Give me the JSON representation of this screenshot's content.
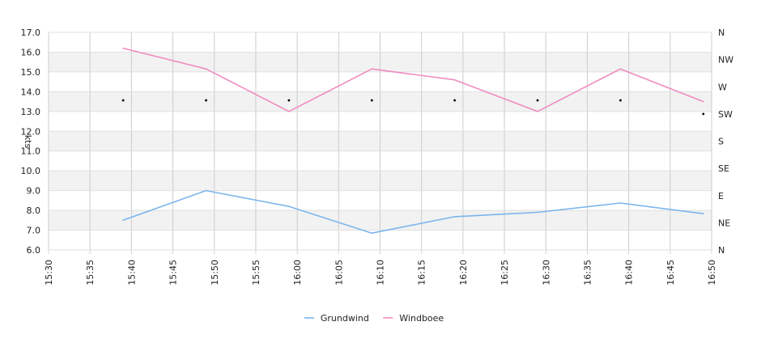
{
  "chart_data": {
    "type": "line",
    "ylabel": "kts",
    "ylim": [
      6,
      17
    ],
    "xlim": [
      "15:30",
      "16:50"
    ],
    "y_ticks": [
      "6.0",
      "7.0",
      "8.0",
      "9.0",
      "10.0",
      "11.0",
      "12.0",
      "13.0",
      "14.0",
      "15.0",
      "16.0",
      "17.0"
    ],
    "x_ticks": [
      "15:30",
      "15:35",
      "15:40",
      "15:45",
      "15:50",
      "15:55",
      "16:00",
      "16:05",
      "16:10",
      "16:15",
      "16:20",
      "16:25",
      "16:30",
      "16:35",
      "16:40",
      "16:45",
      "16:50"
    ],
    "right_axis": {
      "labels": [
        "N",
        "NE",
        "E",
        "SE",
        "S",
        "SW",
        "W",
        "NW",
        "N"
      ]
    },
    "grid": true,
    "legend_position": "bottom",
    "series": [
      {
        "name": "Grundwind",
        "color": "#7cb5ec",
        "x": [
          "15:39",
          "15:49",
          "15:59",
          "16:09",
          "16:19",
          "16:29",
          "16:39",
          "16:49"
        ],
        "values": [
          7.5,
          9.0,
          8.2,
          6.85,
          7.68,
          7.9,
          8.37,
          7.83
        ]
      },
      {
        "name": "Windboee",
        "color": "#f08cc0",
        "x": [
          "15:39",
          "15:49",
          "15:59",
          "16:09",
          "16:19",
          "16:29",
          "16:39",
          "16:49"
        ],
        "values": [
          16.2,
          15.15,
          13.0,
          15.15,
          14.6,
          13.0,
          15.15,
          13.5
        ]
      },
      {
        "name": "",
        "kind": "direction_markers",
        "color": "#000000",
        "x": [
          "15:39",
          "15:49",
          "15:59",
          "16:09",
          "16:19",
          "16:29",
          "16:39",
          "16:49"
        ],
        "direction_index": [
          5.5,
          5.5,
          5.5,
          5.5,
          5.5,
          5.5,
          5.5,
          5.0
        ]
      }
    ]
  }
}
